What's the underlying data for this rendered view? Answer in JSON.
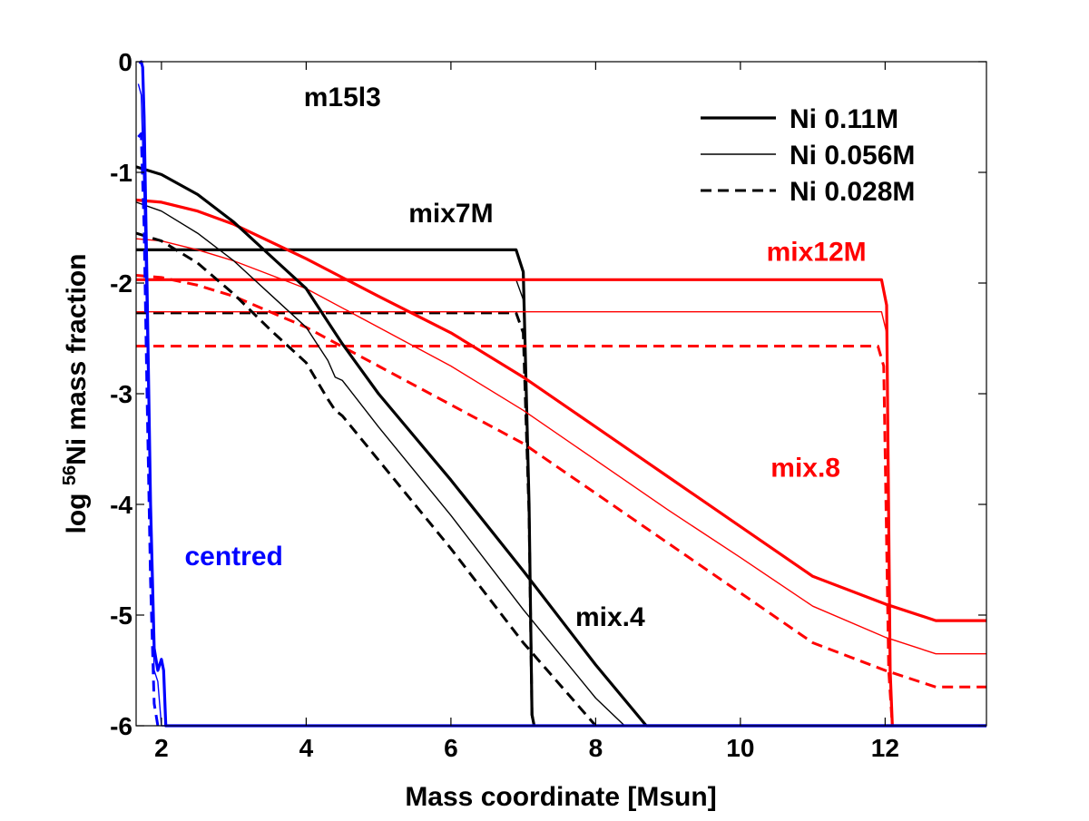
{
  "chart_data": {
    "type": "line",
    "title": "m15l3",
    "xlabel": "Mass coordinate [Msun]",
    "ylabel_prefix": "log ",
    "ylabel_sup": "56",
    "ylabel_suffix": "Ni mass fraction",
    "xlim": [
      1.65,
      13.4
    ],
    "ylim": [
      -6,
      0
    ],
    "xticks": [
      2,
      4,
      6,
      8,
      10,
      12
    ],
    "yticks": [
      0,
      -1,
      -2,
      -3,
      -4,
      -5,
      -6
    ],
    "grid": false,
    "legend_position": "top-right",
    "legend": [
      {
        "label": "Ni 0.11M",
        "style": "thick"
      },
      {
        "label": "Ni 0.056M",
        "style": "thin"
      },
      {
        "label": "Ni 0.028M",
        "style": "dashed"
      }
    ],
    "annotations": [
      {
        "text": "m15l3",
        "color": "#000000",
        "x": 4.5,
        "y": -0.4,
        "anchor": "middle"
      },
      {
        "text": "mix7M",
        "color": "#000000",
        "x": 6.0,
        "y": -1.45,
        "anchor": "middle"
      },
      {
        "text": "mix12M",
        "color": "#ff0000",
        "x": 11.05,
        "y": -1.8,
        "anchor": "middle"
      },
      {
        "text": "mix.8",
        "color": "#ff0000",
        "x": 10.9,
        "y": -3.75,
        "anchor": "middle"
      },
      {
        "text": "mix.4",
        "color": "#000000",
        "x": 8.2,
        "y": -5.1,
        "anchor": "middle"
      },
      {
        "text": "centred",
        "color": "#0000ff",
        "x": 3.0,
        "y": -4.55,
        "anchor": "middle"
      }
    ],
    "colors": {
      "black": "#000000",
      "red": "#ff0000",
      "blue": "#0000ff"
    },
    "series": [
      {
        "name": "mix7M thick",
        "color": "#000000",
        "style": "thick",
        "x": [
          1.65,
          6.9,
          7.0,
          7.08,
          7.12,
          7.15
        ],
        "y": [
          -1.7,
          -1.7,
          -1.9,
          -4.0,
          -5.9,
          -6
        ]
      },
      {
        "name": "mix7M thin",
        "color": "#000000",
        "style": "thin",
        "x": [
          1.65,
          6.9,
          7.0,
          7.08,
          7.12,
          7.15
        ],
        "y": [
          -1.97,
          -1.97,
          -2.15,
          -4.0,
          -5.9,
          -6
        ]
      },
      {
        "name": "mix7M dashed",
        "color": "#000000",
        "style": "dashed",
        "x": [
          1.65,
          6.9,
          7.0,
          7.08,
          7.12,
          7.15
        ],
        "y": [
          -2.27,
          -2.27,
          -2.45,
          -4.1,
          -5.9,
          -6
        ]
      },
      {
        "name": "mix12M thick",
        "color": "#ff0000",
        "style": "thick",
        "x": [
          1.65,
          11.95,
          12.02,
          12.07,
          12.1
        ],
        "y": [
          -1.97,
          -1.97,
          -2.2,
          -5.5,
          -6
        ]
      },
      {
        "name": "mix12M thin",
        "color": "#ff0000",
        "style": "thin",
        "x": [
          1.65,
          11.95,
          12.02,
          12.07,
          12.1
        ],
        "y": [
          -2.26,
          -2.26,
          -2.45,
          -5.5,
          -6
        ]
      },
      {
        "name": "mix12M dashed",
        "color": "#ff0000",
        "style": "dashed",
        "x": [
          1.65,
          11.9,
          11.98,
          12.05,
          12.1
        ],
        "y": [
          -2.57,
          -2.57,
          -2.75,
          -5.5,
          -6
        ]
      },
      {
        "name": "mix.8 thick",
        "color": "#ff0000",
        "style": "thick",
        "x": [
          1.65,
          2.0,
          2.5,
          3.0,
          4.0,
          5.0,
          6.0,
          7.0,
          8.0,
          9.0,
          10.0,
          11.0,
          12.0,
          12.7,
          13.4
        ],
        "y": [
          -1.25,
          -1.27,
          -1.35,
          -1.47,
          -1.78,
          -2.12,
          -2.45,
          -2.85,
          -3.3,
          -3.75,
          -4.2,
          -4.65,
          -4.9,
          -5.05,
          -5.05
        ]
      },
      {
        "name": "mix.8 thin",
        "color": "#ff0000",
        "style": "thin",
        "x": [
          1.65,
          2.0,
          2.5,
          3.0,
          4.0,
          5.0,
          6.0,
          7.0,
          8.0,
          9.0,
          10.0,
          11.0,
          12.0,
          12.7,
          13.4
        ],
        "y": [
          -1.6,
          -1.62,
          -1.7,
          -1.8,
          -2.05,
          -2.4,
          -2.75,
          -3.15,
          -3.6,
          -4.05,
          -4.48,
          -4.92,
          -5.2,
          -5.35,
          -5.35
        ]
      },
      {
        "name": "mix.8 dashed",
        "color": "#ff0000",
        "style": "dashed",
        "x": [
          1.65,
          2.0,
          2.5,
          3.0,
          4.0,
          5.0,
          6.0,
          7.0,
          8.0,
          9.0,
          10.0,
          11.0,
          12.0,
          12.7,
          13.4
        ],
        "y": [
          -1.93,
          -1.95,
          -2.02,
          -2.12,
          -2.4,
          -2.75,
          -3.1,
          -3.45,
          -3.9,
          -4.35,
          -4.8,
          -5.25,
          -5.5,
          -5.65,
          -5.65
        ]
      },
      {
        "name": "mix.4 thick",
        "color": "#000000",
        "style": "thick",
        "x": [
          1.65,
          2.0,
          2.5,
          3.0,
          3.5,
          4.0,
          4.3,
          4.5,
          5.0,
          6.0,
          7.0,
          8.0,
          8.7,
          13.4
        ],
        "y": [
          -0.95,
          -1.02,
          -1.2,
          -1.45,
          -1.75,
          -2.05,
          -2.35,
          -2.55,
          -3.0,
          -3.78,
          -4.6,
          -5.45,
          -6,
          -6
        ]
      },
      {
        "name": "mix.4 thin",
        "color": "#000000",
        "style": "thin",
        "x": [
          1.65,
          2.0,
          2.5,
          3.0,
          3.5,
          4.0,
          4.3,
          4.4,
          4.5,
          5.0,
          6.0,
          7.0,
          8.0,
          8.4
        ],
        "y": [
          -1.27,
          -1.35,
          -1.55,
          -1.8,
          -2.1,
          -2.4,
          -2.7,
          -2.85,
          -2.88,
          -3.3,
          -4.1,
          -4.95,
          -5.75,
          -6
        ]
      },
      {
        "name": "mix.4 dashed",
        "color": "#000000",
        "style": "dashed",
        "x": [
          1.65,
          2.0,
          2.5,
          3.0,
          3.5,
          4.0,
          4.3,
          4.4,
          4.5,
          5.0,
          6.0,
          7.0,
          7.6,
          8.0
        ],
        "y": [
          -1.55,
          -1.62,
          -1.82,
          -2.1,
          -2.42,
          -2.72,
          -3.05,
          -3.15,
          -3.2,
          -3.6,
          -4.4,
          -5.25,
          -5.7,
          -6
        ]
      },
      {
        "name": "centred thick",
        "color": "#0000ff",
        "style": "thick",
        "x": [
          1.7,
          1.72,
          1.74,
          1.76,
          1.8,
          1.85,
          1.9,
          1.95,
          2.0,
          2.03,
          2.06,
          2.1,
          13.4
        ],
        "y": [
          -0.02,
          0,
          -0.05,
          -0.5,
          -2.0,
          -4.0,
          -5.3,
          -5.5,
          -5.4,
          -5.5,
          -6,
          -6,
          -6
        ]
      },
      {
        "name": "centred thin",
        "color": "#0000ff",
        "style": "thin",
        "x": [
          1.68,
          1.72,
          1.76,
          1.8,
          1.85,
          1.9,
          1.95,
          2.0,
          13.4
        ],
        "y": [
          -0.2,
          -0.3,
          -1.2,
          -2.5,
          -4.2,
          -5.5,
          -5.6,
          -6,
          -6
        ]
      },
      {
        "name": "centred dashed",
        "color": "#0000ff",
        "style": "dashed",
        "x": [
          1.68,
          1.72,
          1.76,
          1.8,
          1.85,
          1.9,
          1.95
        ],
        "y": [
          -0.68,
          -0.65,
          -1.5,
          -3.0,
          -4.7,
          -5.8,
          -6
        ]
      }
    ]
  }
}
